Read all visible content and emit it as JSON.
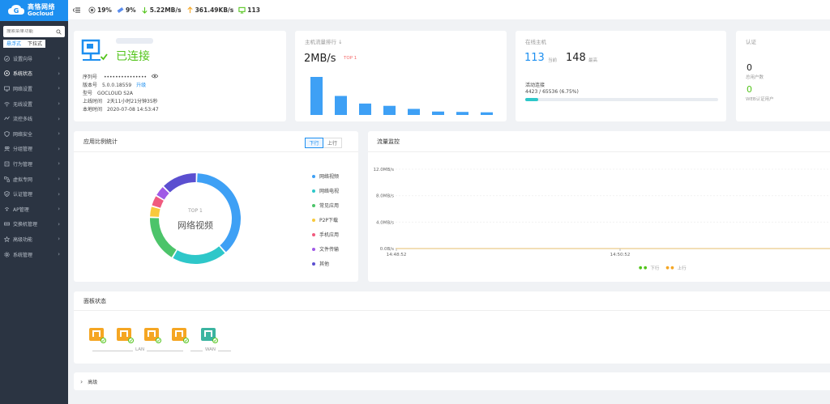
{
  "sidebar": {
    "logo_cn": "高恪网络",
    "logo_en": "Gocloud",
    "search_placeholder": "搜索菜单功能",
    "mode_active": "悬浮式",
    "mode_inactive": "下拉式",
    "items": [
      {
        "label": "设置向导",
        "icon": "wizard-icon"
      },
      {
        "label": "系统状态",
        "icon": "status-icon"
      },
      {
        "label": "网络设置",
        "icon": "monitor-icon"
      },
      {
        "label": "无线设置",
        "icon": "wifi-icon"
      },
      {
        "label": "流控多线",
        "icon": "flow-icon"
      },
      {
        "label": "网络安全",
        "icon": "shield-icon"
      },
      {
        "label": "分组管理",
        "icon": "group-icon"
      },
      {
        "label": "行为管理",
        "icon": "behavior-icon"
      },
      {
        "label": "虚拟专网",
        "icon": "vpn-icon"
      },
      {
        "label": "认证管理",
        "icon": "auth-icon"
      },
      {
        "label": "AP管理",
        "icon": "ap-icon"
      },
      {
        "label": "交换机管理",
        "icon": "switch-icon"
      },
      {
        "label": "高级功能",
        "icon": "advanced-icon"
      },
      {
        "label": "系统管理",
        "icon": "gear-icon"
      }
    ]
  },
  "topbar": {
    "cpu": "19%",
    "mem": "9%",
    "down": "5.22MB/s",
    "up": "361.49KB/s",
    "hosts": "113"
  },
  "colors": {
    "accent": "#1d8ff0",
    "ok": "#52c41a",
    "sidebar": "#2b3442",
    "port": "#f5a623",
    "wan": "#3bb4a0"
  },
  "connection": {
    "status": "已连接",
    "serial_label": "序列号",
    "serial_value": "•••••••••••••••",
    "version_label": "版本号",
    "version_value": "5.0.0.18559",
    "upgrade": "升级",
    "model_label": "型号",
    "model_value": "GOCLOUD S2A",
    "uptime_label": "上线时间",
    "uptime_value": "2天11小时21分钟35秒",
    "localtime_label": "本地时间",
    "localtime_value": "2020-07-08 14:53:47"
  },
  "host_rank": {
    "title": "主机流量排行 ↓",
    "value": "2MB/s",
    "badge": "TOP 1",
    "bar_fractions": [
      1.0,
      0.5,
      0.3,
      0.24,
      0.16,
      0.09,
      0.08,
      0.07
    ]
  },
  "online_hosts": {
    "title": "在线主机",
    "current": "113",
    "current_label": "当前",
    "max": "148",
    "max_label": "最高",
    "conn_title": "活动连接",
    "conn_value": "4423 / 65536 (6.75%)",
    "conn_fraction": 0.0675
  },
  "auth": {
    "title": "认证",
    "total": "0",
    "total_label": "总用户数",
    "web": "0",
    "web_label": "WEB认证用户"
  },
  "app_stats": {
    "title": "应用比例统计",
    "tab_down": "下行",
    "tab_up": "上行",
    "center_top": "TOP 1",
    "center_label": "网络视频",
    "legend": [
      {
        "name": "网络视频",
        "color": "#3ea0f5",
        "value": 38
      },
      {
        "name": "网络电视",
        "color": "#2ec7c9",
        "value": 20
      },
      {
        "name": "常见应用",
        "color": "#4cc46a",
        "value": 17
      },
      {
        "name": "P2P下载",
        "color": "#f8c93c",
        "value": 4
      },
      {
        "name": "手机应用",
        "color": "#f05a7e",
        "value": 4
      },
      {
        "name": "文件传输",
        "color": "#a05ae6",
        "value": 4
      },
      {
        "name": "其他",
        "color": "#5b4fd0",
        "value": 13
      }
    ]
  },
  "traffic": {
    "title": "流量监控",
    "y_ticks": [
      "12.0MB/s",
      "8.0MB/s",
      "4.0MB/s",
      "0.0B/s"
    ],
    "x_ticks": [
      "14:48:52",
      "14:50:52"
    ],
    "legend_down": "下行",
    "legend_up": "上行"
  },
  "panel": {
    "title": "面板状态",
    "lan_label": "LAN",
    "wan_label": "WAN"
  },
  "advanced": {
    "label": "高级"
  }
}
